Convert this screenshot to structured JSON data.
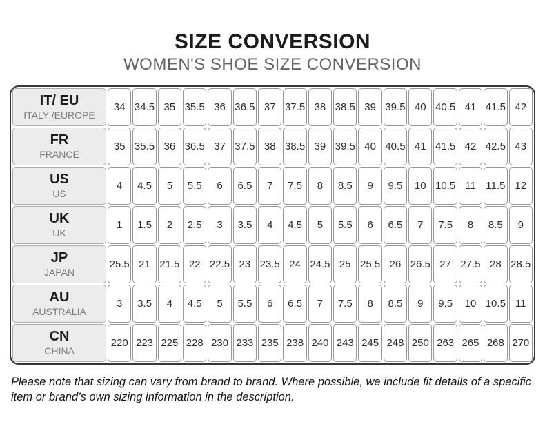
{
  "header": {
    "title": "SIZE CONVERSION",
    "subtitle": "WOMEN'S SHOE SIZE CONVERSION"
  },
  "table": {
    "rows": [
      {
        "code": "IT/ EU",
        "region": "ITALY /EUROPE",
        "values": [
          "34",
          "34.5",
          "35",
          "35.5",
          "36",
          "36.5",
          "37",
          "37.5",
          "38",
          "38.5",
          "39",
          "39.5",
          "40",
          "40.5",
          "41",
          "41.5",
          "42"
        ]
      },
      {
        "code": "FR",
        "region": "FRANCE",
        "values": [
          "35",
          "35.5",
          "36",
          "36.5",
          "37",
          "37.5",
          "38",
          "38.5",
          "39",
          "39.5",
          "40",
          "40.5",
          "41",
          "41.5",
          "42",
          "42.5",
          "43"
        ]
      },
      {
        "code": "US",
        "region": "US",
        "values": [
          "4",
          "4.5",
          "5",
          "5.5",
          "6",
          "6.5",
          "7",
          "7.5",
          "8",
          "8.5",
          "9",
          "9.5",
          "10",
          "10.5",
          "11",
          "11.5",
          "12"
        ]
      },
      {
        "code": "UK",
        "region": "UK",
        "values": [
          "1",
          "1.5",
          "2",
          "2.5",
          "3",
          "3.5",
          "4",
          "4.5",
          "5",
          "5.5",
          "6",
          "6.5",
          "7",
          "7.5",
          "8",
          "8.5",
          "9"
        ]
      },
      {
        "code": "JP",
        "region": "JAPAN",
        "values": [
          "25.5",
          "21",
          "21.5",
          "22",
          "22.5",
          "23",
          "23.5",
          "24",
          "24.5",
          "25",
          "25.5",
          "26",
          "26.5",
          "27",
          "27.5",
          "28",
          "28.5"
        ]
      },
      {
        "code": "AU",
        "region": "AUSTRALIA",
        "values": [
          "3",
          "3.5",
          "4",
          "4.5",
          "5",
          "5.5",
          "6",
          "6.5",
          "7",
          "7.5",
          "8",
          "8.5",
          "9",
          "9.5",
          "10",
          "10.5",
          "11"
        ]
      },
      {
        "code": "CN",
        "region": "CHINA",
        "values": [
          "220",
          "223",
          "225",
          "228",
          "230",
          "233",
          "235",
          "238",
          "240",
          "243",
          "245",
          "248",
          "250",
          "263",
          "265",
          "268",
          "270"
        ]
      }
    ]
  },
  "footnote": "Please note that sizing can vary from brand to brand. Where possible, we include fit details of a specific item or brand’s own sizing information in the description.",
  "colors": {
    "title_text": "#1c1c1c",
    "subtitle_text": "#636363",
    "outer_border": "#363636",
    "cell_border": "#989898",
    "header_cell_bg": "#ececec",
    "header_sub_text": "#7b7b7b",
    "value_text": "#2e2e2e"
  }
}
